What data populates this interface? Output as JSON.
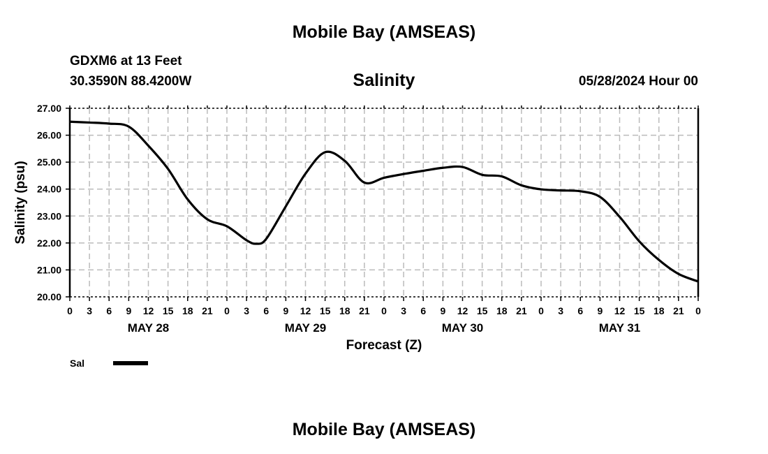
{
  "header": {
    "title": "Mobile Bay (AMSEAS)",
    "station": "GDXM6 at 13 Feet",
    "coordinates": "30.3590N  88.4200W",
    "datetime": "05/28/2024 Hour 00"
  },
  "footer": {
    "title": "Mobile Bay (AMSEAS)"
  },
  "chart_data": {
    "type": "line",
    "title": "Salinity",
    "xlabel": "Forecast (Z)",
    "ylabel": "Salinity (psu)",
    "ylim": [
      20,
      27
    ],
    "xlim": [
      0,
      96
    ],
    "grid": true,
    "yticks": [
      "20.00",
      "21.00",
      "22.00",
      "23.00",
      "24.00",
      "25.00",
      "26.00",
      "27.00"
    ],
    "xtick_labels": [
      "0",
      "3",
      "6",
      "9",
      "12",
      "15",
      "18",
      "21",
      "0",
      "3",
      "6",
      "9",
      "12",
      "15",
      "18",
      "21",
      "0",
      "3",
      "6",
      "9",
      "12",
      "15",
      "18",
      "21",
      "0",
      "3",
      "6",
      "9",
      "12",
      "15",
      "18",
      "21",
      "0"
    ],
    "day_labels": [
      "MAY 28",
      "MAY 29",
      "MAY 30",
      "MAY 31"
    ],
    "legend": {
      "placement": "bottom-left",
      "entries": [
        "Sal"
      ]
    },
    "series": [
      {
        "name": "Sal",
        "x": [
          0,
          3,
          6,
          9,
          12,
          15,
          18,
          21,
          24,
          27,
          28.5,
          30,
          33,
          36,
          39,
          42,
          45,
          48,
          51,
          54,
          57,
          60,
          63,
          66,
          69,
          72,
          75,
          78,
          81,
          84,
          87,
          90,
          93,
          96
        ],
        "values": [
          26.5,
          26.47,
          26.43,
          26.32,
          25.61,
          24.75,
          23.62,
          22.88,
          22.62,
          22.1,
          21.97,
          22.15,
          23.36,
          24.57,
          25.37,
          25.05,
          24.24,
          24.42,
          24.56,
          24.68,
          24.79,
          24.82,
          24.53,
          24.47,
          24.14,
          23.99,
          23.95,
          23.92,
          23.71,
          22.97,
          22.06,
          21.37,
          20.85,
          20.57
        ]
      }
    ]
  }
}
